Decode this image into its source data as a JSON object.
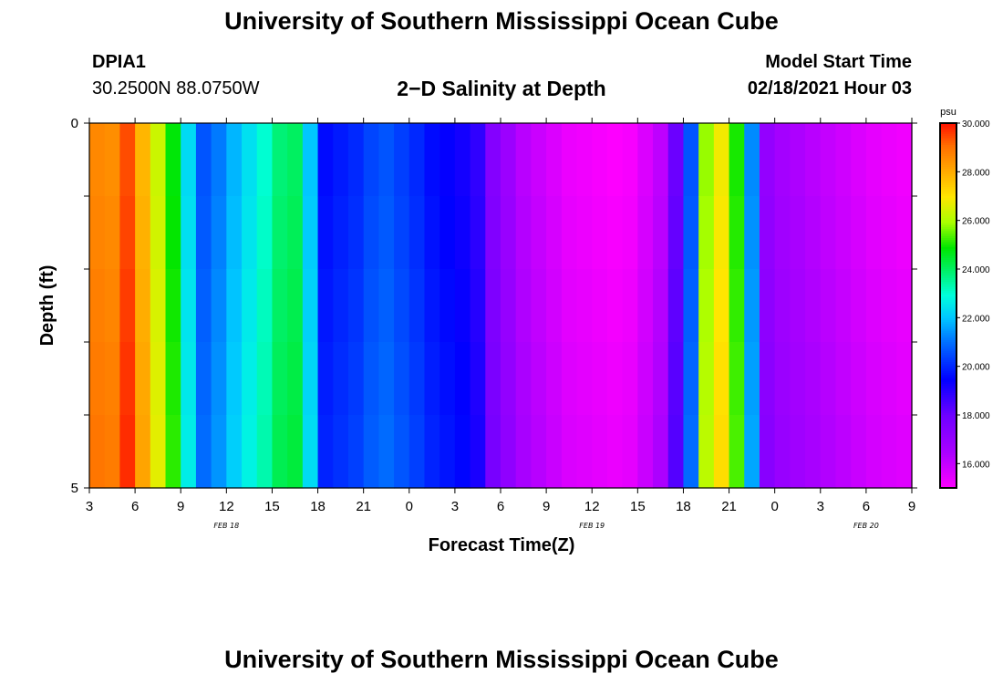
{
  "header": {
    "title": "University of Southern Mississippi Ocean Cube",
    "footer_title": "University of Southern Mississippi Ocean Cube",
    "station_id": "DPIA1",
    "coordinates": "30.2500N 88.0750W",
    "plot_title": "2−D Salinity at Depth",
    "model_start_label": "Model Start Time",
    "model_start_value": "02/18/2021 Hour 03"
  },
  "chart_data": {
    "type": "heatmap",
    "title": "2−D Salinity at Depth",
    "xlabel": "Forecast Time(Z)",
    "ylabel": "Depth (ft)",
    "x_hours": [
      3,
      4,
      5,
      6,
      7,
      8,
      9,
      10,
      11,
      12,
      13,
      14,
      15,
      16,
      17,
      18,
      19,
      20,
      21,
      22,
      23,
      0,
      1,
      2,
      3,
      4,
      5,
      6,
      7,
      8,
      9,
      10,
      11,
      12,
      13,
      14,
      15,
      16,
      17,
      18,
      19,
      20,
      21,
      22,
      23,
      0,
      1,
      2,
      3,
      4,
      5,
      6,
      7,
      8,
      9
    ],
    "x_tick_labels": [
      "3",
      "6",
      "9",
      "12",
      "15",
      "18",
      "21",
      "0",
      "3",
      "6",
      "9",
      "12",
      "15",
      "18",
      "21",
      "0",
      "3",
      "6",
      "9"
    ],
    "date_labels": [
      {
        "label": "FEB 18",
        "hour_index": 9
      },
      {
        "label": "FEB 19",
        "hour_index": 33
      },
      {
        "label": "FEB 20",
        "hour_index": 51
      }
    ],
    "y_range": [
      0,
      5
    ],
    "y_tick_labels": [
      "0",
      "5"
    ],
    "depth_levels": 5,
    "salinity_by_hour": [
      28.8,
      28.7,
      29.6,
      28.0,
      26.5,
      25.0,
      22.5,
      20.8,
      21.3,
      22.0,
      22.6,
      23.2,
      24.0,
      24.2,
      22.2,
      19.8,
      20.0,
      20.2,
      20.6,
      20.8,
      20.5,
      20.2,
      19.8,
      19.6,
      19.4,
      19.0,
      17.6,
      17.0,
      16.4,
      16.1,
      15.8,
      15.5,
      15.4,
      15.3,
      15.2,
      15.3,
      15.8,
      16.3,
      18.2,
      20.8,
      26.0,
      27.0,
      25.2,
      21.5,
      17.2,
      16.8,
      16.6,
      16.4,
      16.2,
      16.0,
      15.8,
      15.6,
      15.5,
      15.4,
      15.3
    ],
    "colorbar": {
      "unit": "psu",
      "min": 15.0,
      "max": 30.0,
      "tick_values": [
        30,
        28,
        26,
        24,
        22,
        20,
        18,
        16
      ],
      "tick_labels": [
        "30.000",
        "28.000",
        "26.000",
        "24.000",
        "22.000",
        "20.000",
        "18.000",
        "16.000"
      ]
    }
  }
}
